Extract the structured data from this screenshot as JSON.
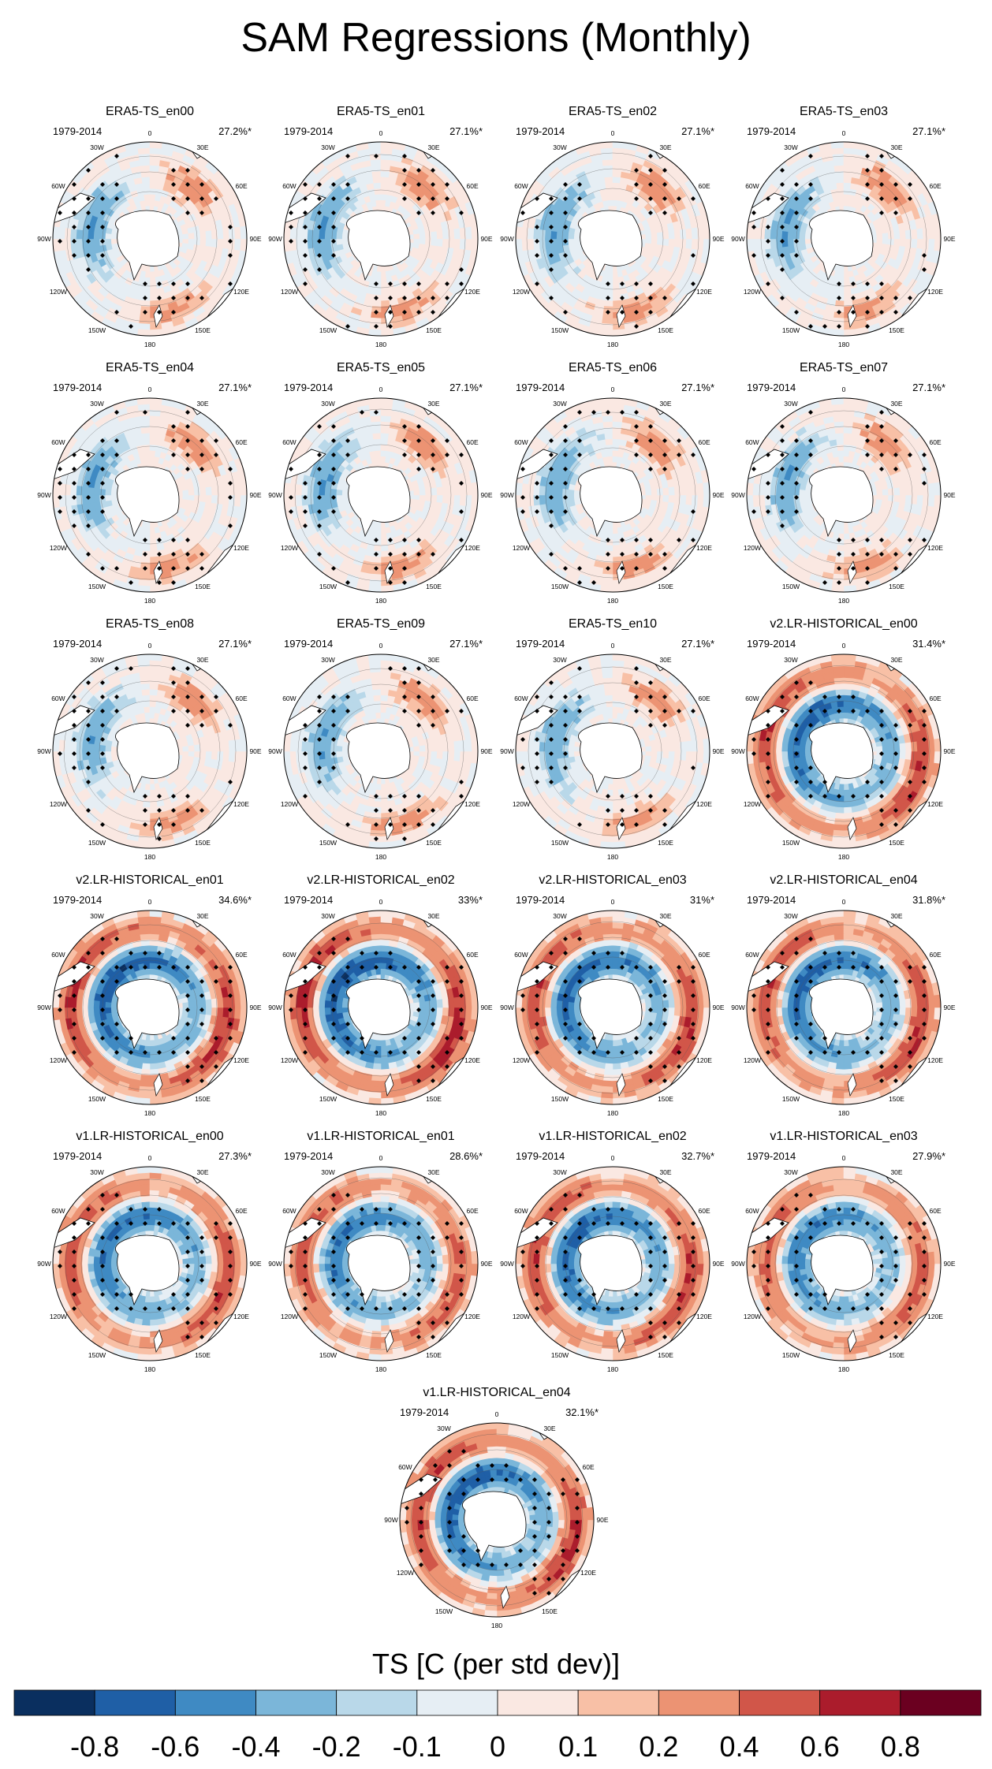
{
  "title": "SAM Regressions (Monthly)",
  "panels": [
    {
      "title": "ERA5-TS_en00",
      "period": "1979-2014",
      "percent": "27.2%*",
      "pattern": "obs",
      "amp": 0.45
    },
    {
      "title": "ERA5-TS_en01",
      "period": "1979-2014",
      "percent": "27.1%*",
      "pattern": "obs",
      "amp": 0.45
    },
    {
      "title": "ERA5-TS_en02",
      "period": "1979-2014",
      "percent": "27.1%*",
      "pattern": "obs",
      "amp": 0.45
    },
    {
      "title": "ERA5-TS_en03",
      "period": "1979-2014",
      "percent": "27.1%*",
      "pattern": "obs",
      "amp": 0.45
    },
    {
      "title": "ERA5-TS_en04",
      "period": "1979-2014",
      "percent": "27.1%*",
      "pattern": "obs",
      "amp": 0.45
    },
    {
      "title": "ERA5-TS_en05",
      "period": "1979-2014",
      "percent": "27.1%*",
      "pattern": "obs",
      "amp": 0.45
    },
    {
      "title": "ERA5-TS_en06",
      "period": "1979-2014",
      "percent": "27.1%*",
      "pattern": "obs",
      "amp": 0.45
    },
    {
      "title": "ERA5-TS_en07",
      "period": "1979-2014",
      "percent": "27.1%*",
      "pattern": "obs",
      "amp": 0.45
    },
    {
      "title": "ERA5-TS_en08",
      "period": "1979-2014",
      "percent": "27.1%*",
      "pattern": "obs",
      "amp": 0.45
    },
    {
      "title": "ERA5-TS_en09",
      "period": "1979-2014",
      "percent": "27.1%*",
      "pattern": "obs",
      "amp": 0.45
    },
    {
      "title": "ERA5-TS_en10",
      "period": "1979-2014",
      "percent": "27.1%*",
      "pattern": "obs",
      "amp": 0.45
    },
    {
      "title": "v2.LR-HISTORICAL_en00",
      "period": "1979-2014",
      "percent": "31.4%*",
      "pattern": "model",
      "amp": 0.6
    },
    {
      "title": "v2.LR-HISTORICAL_en01",
      "period": "1979-2014",
      "percent": "34.6%*",
      "pattern": "model",
      "amp": 0.65
    },
    {
      "title": "v2.LR-HISTORICAL_en02",
      "period": "1979-2014",
      "percent": "33%*",
      "pattern": "model",
      "amp": 0.7
    },
    {
      "title": "v2.LR-HISTORICAL_en03",
      "period": "1979-2014",
      "percent": "31%*",
      "pattern": "model",
      "amp": 0.6
    },
    {
      "title": "v2.LR-HISTORICAL_en04",
      "period": "1979-2014",
      "percent": "31.8%*",
      "pattern": "model",
      "amp": 0.6
    },
    {
      "title": "v1.LR-HISTORICAL_en00",
      "period": "1979-2014",
      "percent": "27.3%*",
      "pattern": "model",
      "amp": 0.55
    },
    {
      "title": "v1.LR-HISTORICAL_en01",
      "period": "1979-2014",
      "percent": "28.6%*",
      "pattern": "model",
      "amp": 0.5
    },
    {
      "title": "v1.LR-HISTORICAL_en02",
      "period": "1979-2014",
      "percent": "32.7%*",
      "pattern": "model",
      "amp": 0.6
    },
    {
      "title": "v1.LR-HISTORICAL_en03",
      "period": "1979-2014",
      "percent": "27.9%*",
      "pattern": "model",
      "amp": 0.5
    },
    {
      "title": "v1.LR-HISTORICAL_en04",
      "period": "1979-2014",
      "percent": "32.1%*",
      "pattern": "model",
      "amp": 0.65
    }
  ],
  "map_labels": [
    "0",
    "30E",
    "60E",
    "90E",
    "120E",
    "150E",
    "180",
    "150W",
    "120W",
    "90W",
    "60W",
    "30W"
  ],
  "colorbar": {
    "title": "TS [C (per std dev)]",
    "ticks": [
      "-0.8",
      "-0.6",
      "-0.4",
      "-0.2",
      "-0.1",
      "0",
      "0.1",
      "0.2",
      "0.4",
      "0.6",
      "0.8"
    ],
    "colors": [
      "#0a2f5f",
      "#1f5fa6",
      "#3f8ac3",
      "#7bb6d9",
      "#b9d8e9",
      "#e6eef4",
      "#fae8e2",
      "#f8c0a6",
      "#ec9373",
      "#d15649",
      "#ab1c2c",
      "#6b0020"
    ]
  }
}
